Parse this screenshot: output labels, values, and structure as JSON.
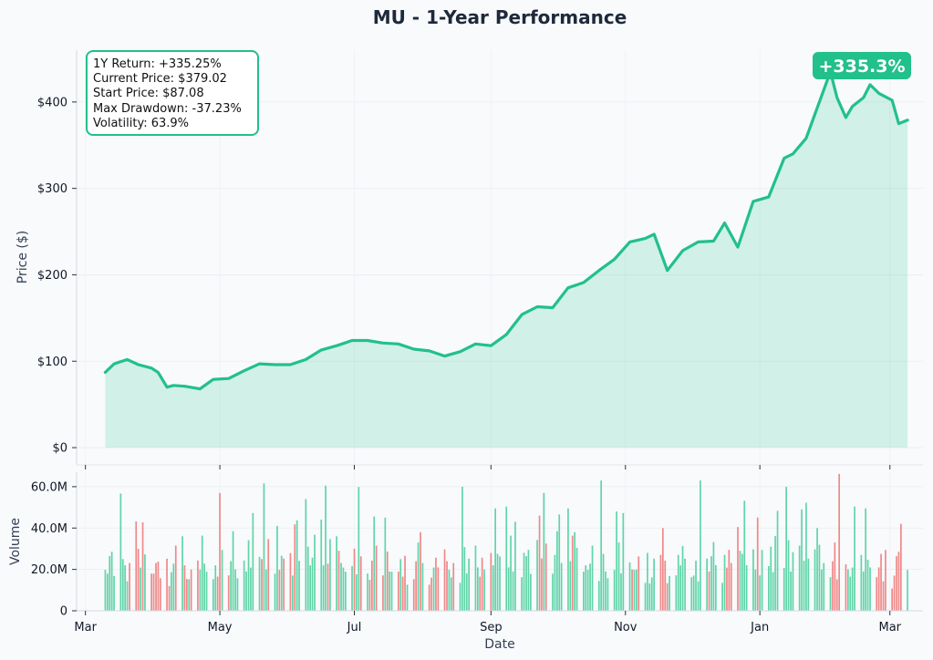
{
  "chart_data": {
    "type": "line",
    "title": "MU - 1-Year Performance",
    "xlabel": "Date",
    "ylabel": "Price ($)",
    "volume_ylabel": "Volume",
    "colors": {
      "line": "#22c08a",
      "fill": "#22c08a",
      "up": "#4fcf9f",
      "down": "#ee7b7b"
    },
    "x_ticks": [
      {
        "date": "2025-03-01",
        "label": "Mar"
      },
      {
        "date": "2025-05-01",
        "label": "May"
      },
      {
        "date": "2025-07-01",
        "label": "Jul"
      },
      {
        "date": "2025-09-01",
        "label": "Sep"
      },
      {
        "date": "2025-11-01",
        "label": "Nov"
      },
      {
        "date": "2026-01-01",
        "label": "Jan"
      },
      {
        "date": "2026-03-01",
        "label": "Mar"
      }
    ],
    "xlim": [
      "2025-02-25",
      "2026-03-16"
    ],
    "price_ylim": [
      -20,
      460
    ],
    "price_ticks": [
      {
        "value": 0,
        "label": "$0"
      },
      {
        "value": 100,
        "label": "$100"
      },
      {
        "value": 200,
        "label": "$200"
      },
      {
        "value": 300,
        "label": "$300"
      },
      {
        "value": 400,
        "label": "$400"
      }
    ],
    "volume_ylim": [
      0,
      67000000
    ],
    "volume_ticks": [
      {
        "value": 0,
        "label": "0"
      },
      {
        "value": 20000000,
        "label": "20.0M"
      },
      {
        "value": 40000000,
        "label": "40.0M"
      },
      {
        "value": 60000000,
        "label": "60.0M"
      }
    ],
    "series": [
      {
        "name": "Price",
        "points": [
          [
            "2025-03-10",
            87.08
          ],
          [
            "2025-03-14",
            97
          ],
          [
            "2025-03-20",
            102
          ],
          [
            "2025-03-25",
            96
          ],
          [
            "2025-03-31",
            92
          ],
          [
            "2025-04-03",
            87
          ],
          [
            "2025-04-07",
            70
          ],
          [
            "2025-04-10",
            72
          ],
          [
            "2025-04-15",
            71
          ],
          [
            "2025-04-22",
            68
          ],
          [
            "2025-04-28",
            79
          ],
          [
            "2025-05-05",
            80
          ],
          [
            "2025-05-12",
            89
          ],
          [
            "2025-05-19",
            97
          ],
          [
            "2025-05-26",
            96
          ],
          [
            "2025-06-02",
            96
          ],
          [
            "2025-06-09",
            102
          ],
          [
            "2025-06-16",
            113
          ],
          [
            "2025-06-23",
            118
          ],
          [
            "2025-06-30",
            124
          ],
          [
            "2025-07-07",
            124
          ],
          [
            "2025-07-14",
            121
          ],
          [
            "2025-07-21",
            120
          ],
          [
            "2025-07-28",
            114
          ],
          [
            "2025-08-04",
            112
          ],
          [
            "2025-08-11",
            106
          ],
          [
            "2025-08-18",
            111
          ],
          [
            "2025-08-25",
            120
          ],
          [
            "2025-09-01",
            118
          ],
          [
            "2025-09-08",
            131
          ],
          [
            "2025-09-15",
            154
          ],
          [
            "2025-09-22",
            163
          ],
          [
            "2025-09-29",
            162
          ],
          [
            "2025-10-06",
            185
          ],
          [
            "2025-10-13",
            191
          ],
          [
            "2025-10-20",
            205
          ],
          [
            "2025-10-27",
            218
          ],
          [
            "2025-11-03",
            238
          ],
          [
            "2025-11-10",
            242
          ],
          [
            "2025-11-14",
            247
          ],
          [
            "2025-11-20",
            205
          ],
          [
            "2025-11-27",
            228
          ],
          [
            "2025-12-04",
            238
          ],
          [
            "2025-12-11",
            239
          ],
          [
            "2025-12-16",
            260
          ],
          [
            "2025-12-22",
            232
          ],
          [
            "2025-12-29",
            285
          ],
          [
            "2026-01-05",
            290
          ],
          [
            "2026-01-12",
            335
          ],
          [
            "2026-01-16",
            340
          ],
          [
            "2026-01-22",
            358
          ],
          [
            "2026-01-28",
            400
          ],
          [
            "2026-02-02",
            435
          ],
          [
            "2026-02-05",
            405
          ],
          [
            "2026-02-09",
            382
          ],
          [
            "2026-02-12",
            395
          ],
          [
            "2026-02-17",
            405
          ],
          [
            "2026-02-20",
            420
          ],
          [
            "2026-02-24",
            410
          ],
          [
            "2026-03-02",
            402
          ],
          [
            "2026-03-05",
            375
          ],
          [
            "2026-03-09",
            379.02
          ]
        ]
      }
    ],
    "volume_pattern": [
      22,
      18,
      24,
      30,
      16,
      63,
      25,
      20,
      15,
      22,
      48,
      30,
      19,
      45,
      26,
      20,
      18,
      21,
      25,
      15,
      28,
      12,
      17,
      24,
      30,
      40,
      22,
      14,
      16,
      19,
      27,
      20,
      33,
      24,
      18,
      17,
      22,
      15,
      60,
      28,
      19,
      24,
      35,
      21,
      15,
      27,
      19,
      31,
      22,
      45,
      29,
      25,
      56,
      21,
      33,
      20,
      41,
      18,
      28,
      24,
      31,
      17,
      38,
      46,
      23,
      60,
      31,
      20,
      27,
      35,
      49,
      22,
      55,
      24,
      33,
      40,
      29,
      21
    ],
    "stats": [
      "1Y Return: +335.25%",
      "Current Price: $379.02",
      "Start Price: $87.08",
      "Max Drawdown: -37.23%",
      "Volatility: 63.9%"
    ],
    "badge": "+335.3%"
  }
}
